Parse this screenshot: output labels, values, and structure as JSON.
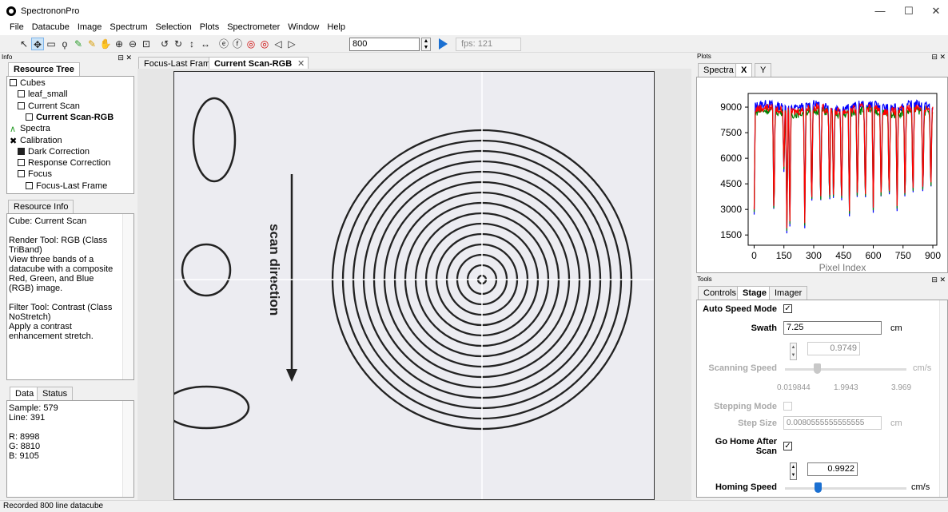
{
  "window": {
    "title": "SpectrononPro",
    "controls": [
      "—",
      "☐",
      "✕"
    ]
  },
  "menu": [
    "File",
    "Datacube",
    "Image",
    "Spectrum",
    "Selection",
    "Plots",
    "Spectrometer",
    "Window",
    "Help"
  ],
  "toolbar": {
    "frame_value": "800",
    "fps": "fps: 121"
  },
  "info": {
    "header": "Info",
    "tab": "Resource Tree",
    "tree": [
      {
        "label": "Cubes",
        "icon": "cube-stack-icon",
        "indent": 0
      },
      {
        "label": "leaf_small",
        "icon": "cube-icon",
        "indent": 1
      },
      {
        "label": "Current Scan",
        "icon": "cube-icon",
        "indent": 1
      },
      {
        "label": "Current Scan-RGB",
        "icon": "image-icon",
        "indent": 2,
        "bold": true
      },
      {
        "label": "Spectra",
        "icon": "spectra-icon",
        "indent": 0
      },
      {
        "label": "Calibration",
        "icon": "tools-icon",
        "indent": 0
      },
      {
        "label": "Dark Correction",
        "icon": "dark-cube-icon",
        "indent": 1
      },
      {
        "label": "Response Correction",
        "icon": "cube-icon",
        "indent": 1
      },
      {
        "label": "Focus",
        "icon": "focus-icon",
        "indent": 1
      },
      {
        "label": "Focus-Last Frame",
        "icon": "image-icon",
        "indent": 2
      }
    ],
    "resource_tab": "Resource Info",
    "resource_text": [
      "Cube: Current Scan",
      "",
      "Render Tool:  RGB (Class TriBand)",
      " View three bands of a datacube with a composite Red, Green, and Blue (RGB) image.",
      "",
      "Filter Tool: Contrast (Class NoStretch)",
      " Apply a contrast enhancement stretch."
    ],
    "data_tabs": [
      "Data",
      "Status"
    ],
    "data_lines": [
      "Sample: 579",
      "Line: 391",
      "",
      "R: 8998",
      "G: 8810",
      "B: 9105"
    ]
  },
  "viewer": {
    "tabs": [
      "Focus-Last Frame",
      "Current Scan-RGB"
    ],
    "close": "✕",
    "scan_label": "scan direction"
  },
  "plots": {
    "header": "Plots",
    "tabs": [
      "Spectra",
      "X",
      "Y"
    ],
    "chart_data": {
      "type": "line",
      "xlabel": "Pixel Index",
      "ylabel": "",
      "xlim": [
        -30,
        920
      ],
      "ylim": [
        900,
        9800
      ],
      "xticks": [
        0,
        150,
        300,
        450,
        600,
        750,
        900
      ],
      "yticks": [
        1500,
        3000,
        4500,
        6000,
        7500,
        9000
      ],
      "series": [
        {
          "color": "#0000ff",
          "base": 9050
        },
        {
          "color": "#008000",
          "base": 8700
        },
        {
          "color": "#ff0000",
          "base": 8850
        }
      ],
      "dips": [
        [
          0,
          2700
        ],
        [
          100,
          1800
        ],
        [
          150,
          5200
        ],
        [
          165,
          1600
        ],
        [
          180,
          2000
        ],
        [
          255,
          1900
        ],
        [
          290,
          2400
        ],
        [
          335,
          2400
        ],
        [
          380,
          2500
        ],
        [
          400,
          2600
        ],
        [
          440,
          2500
        ],
        [
          480,
          2600
        ],
        [
          520,
          2700
        ],
        [
          560,
          2600
        ],
        [
          600,
          2800
        ],
        [
          640,
          2700
        ],
        [
          680,
          2900
        ],
        [
          720,
          2900
        ],
        [
          760,
          2700
        ],
        [
          800,
          3000
        ],
        [
          850,
          3100
        ],
        [
          890,
          3400
        ]
      ]
    }
  },
  "tools": {
    "header": "Tools",
    "tabs": [
      "Controls",
      "Stage",
      "Imager"
    ],
    "auto_speed_label": "Auto Speed Mode",
    "auto_speed_check": "✓",
    "swath_label": "Swath",
    "swath_value": "7.25",
    "swath_unit": "cm",
    "scan_speed_value": "0.9749",
    "scan_speed_label": "Scanning Speed",
    "scan_speed_unit": "cm/s",
    "scan_speed_ticks": [
      "0.019844",
      "1.9943",
      "3.969"
    ],
    "stepping_label": "Stepping Mode",
    "step_size_label": "Step Size",
    "step_size_value": "0.0080555555555555",
    "step_size_unit": "cm",
    "go_home_label1": "Go Home After",
    "go_home_label2": "Scan",
    "go_home_check": "✓",
    "homing_value": "0.9922",
    "homing_label": "Homing Speed",
    "homing_unit": "cm/s",
    "scan_slider_level": 0.24,
    "homing_slider_level": 0.25
  },
  "status": "Recorded 800 line datacube"
}
